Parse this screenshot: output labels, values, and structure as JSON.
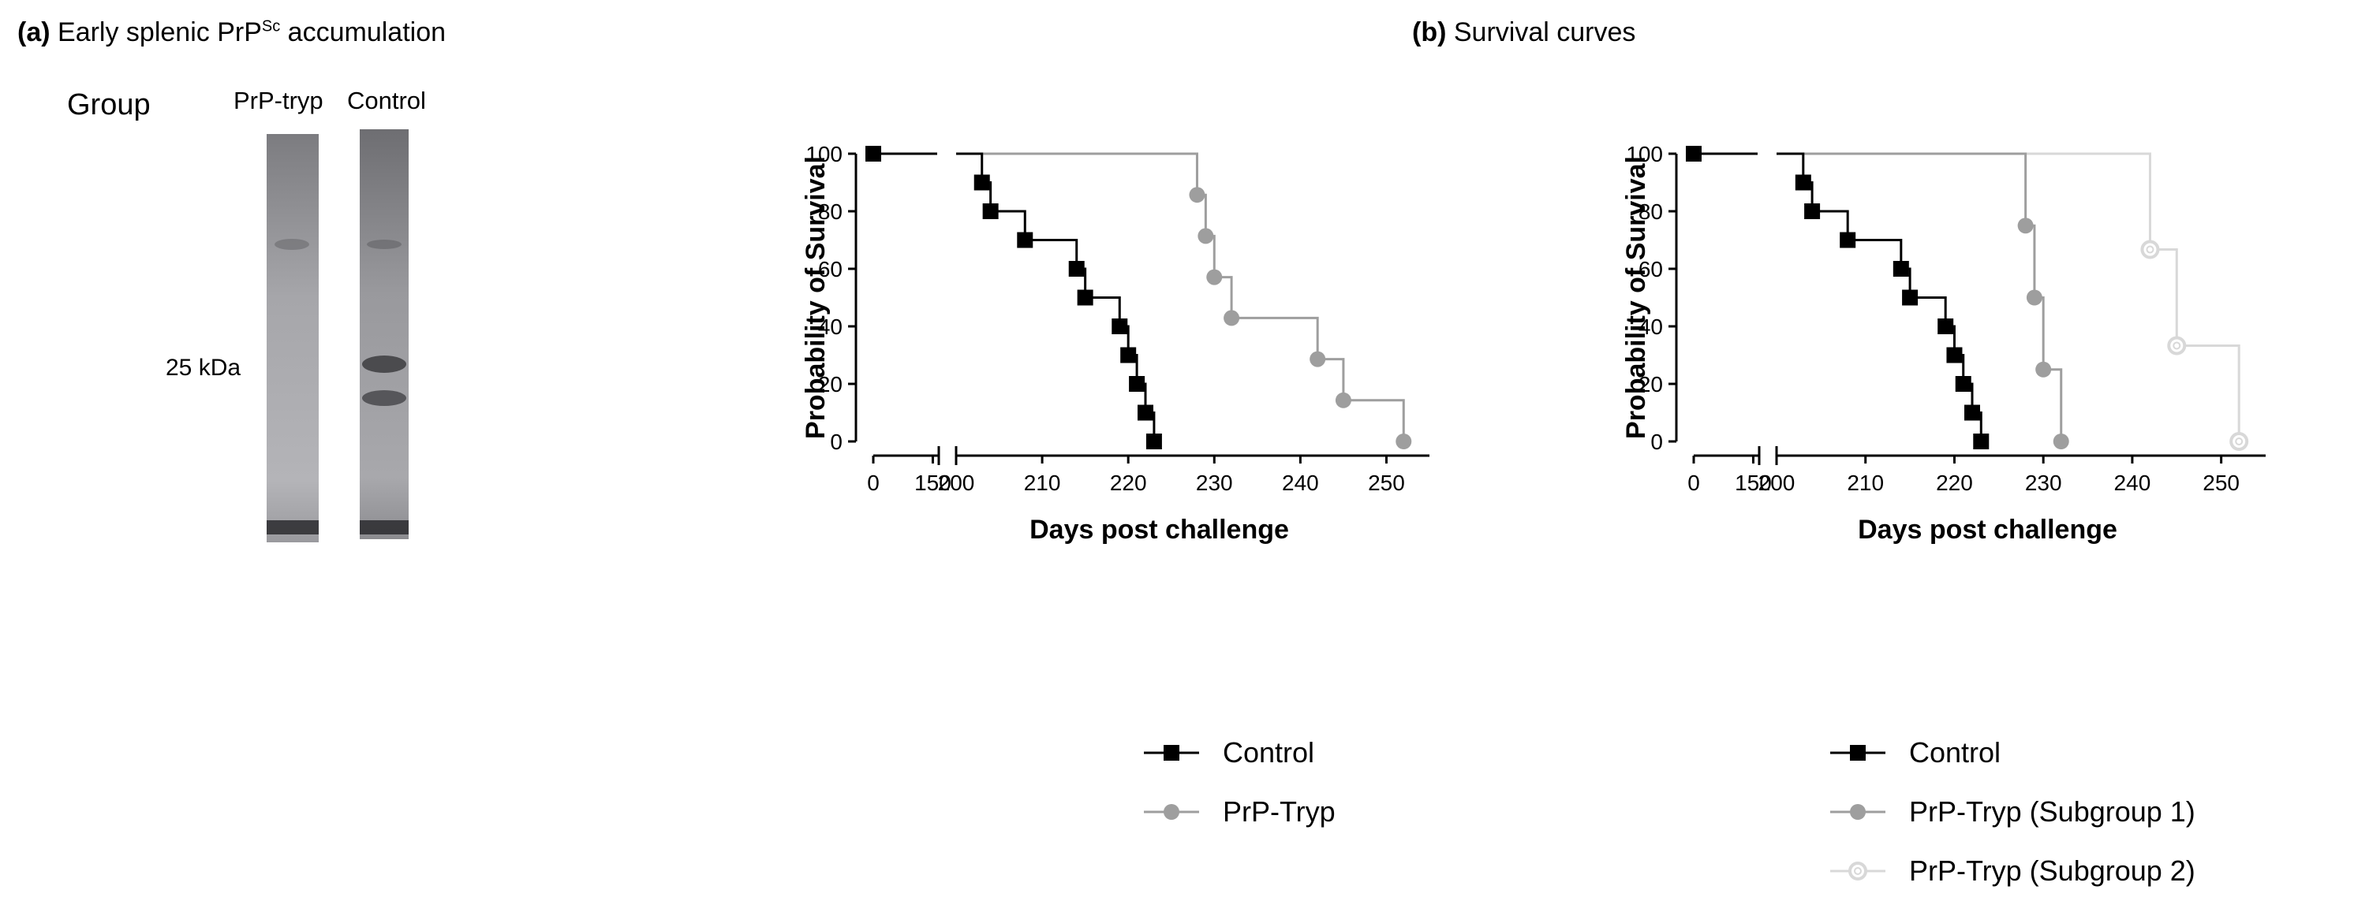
{
  "panel_a": {
    "letter": "(a)",
    "title_main": "Early splenic PrP",
    "title_sup": "Sc",
    "title_end": " accumulation",
    "group_label": "Group",
    "lane_labels": [
      "PrP-tryp",
      "Control"
    ],
    "marker_label": "25 kDa"
  },
  "panel_b": {
    "letter": "(b)",
    "title": "Survival curves"
  },
  "colors": {
    "control": "#000000",
    "prp_tryp": "#9e9e9e",
    "subgroup1": "#9e9e9e",
    "subgroup2": "#d8d8d8"
  },
  "chart_data": [
    {
      "type": "line",
      "subtype": "kaplan-meier",
      "title": "",
      "xlabel": "Days post challenge",
      "ylabel": "Probability of Survival",
      "x_axis_break": {
        "segment1": [
          0,
          165
        ],
        "segment2": [
          200,
          255
        ]
      },
      "x_ticks": [
        0,
        150,
        200,
        210,
        220,
        230,
        240,
        250
      ],
      "ylim": [
        0,
        100
      ],
      "y_ticks": [
        0,
        20,
        40,
        60,
        80,
        100
      ],
      "series": [
        {
          "name": "Control",
          "color_key": "control",
          "marker": "square",
          "steps": [
            [
              0,
              100
            ],
            [
              203,
              90
            ],
            [
              204,
              80
            ],
            [
              208,
              70
            ],
            [
              214,
              60
            ],
            [
              215,
              50
            ],
            [
              219,
              40
            ],
            [
              220,
              30
            ],
            [
              221,
              20
            ],
            [
              222,
              10
            ],
            [
              223,
              0
            ]
          ]
        },
        {
          "name": "PrP-Tryp",
          "color_key": "prp_tryp",
          "marker": "circle",
          "steps": [
            [
              0,
              100
            ],
            [
              228,
              85.7
            ],
            [
              229,
              71.4
            ],
            [
              230,
              57.1
            ],
            [
              232,
              42.9
            ],
            [
              242,
              28.6
            ],
            [
              245,
              14.3
            ],
            [
              252,
              0
            ]
          ]
        }
      ]
    },
    {
      "type": "line",
      "subtype": "kaplan-meier",
      "title": "",
      "xlabel": "Days post challenge",
      "ylabel": "Probability of Survival",
      "x_axis_break": {
        "segment1": [
          0,
          165
        ],
        "segment2": [
          200,
          255
        ]
      },
      "x_ticks": [
        0,
        150,
        200,
        210,
        220,
        230,
        240,
        250
      ],
      "ylim": [
        0,
        100
      ],
      "y_ticks": [
        0,
        20,
        40,
        60,
        80,
        100
      ],
      "series": [
        {
          "name": "Control",
          "color_key": "control",
          "marker": "square",
          "steps": [
            [
              0,
              100
            ],
            [
              203,
              90
            ],
            [
              204,
              80
            ],
            [
              208,
              70
            ],
            [
              214,
              60
            ],
            [
              215,
              50
            ],
            [
              219,
              40
            ],
            [
              220,
              30
            ],
            [
              221,
              20
            ],
            [
              222,
              10
            ],
            [
              223,
              0
            ]
          ]
        },
        {
          "name": "PrP-Tryp (Subgroup 1)",
          "color_key": "subgroup1",
          "marker": "circle",
          "steps": [
            [
              0,
              100
            ],
            [
              228,
              75
            ],
            [
              229,
              50
            ],
            [
              230,
              25
            ],
            [
              232,
              0
            ]
          ]
        },
        {
          "name": "PrP-Tryp (Subgroup 2)",
          "color_key": "subgroup2",
          "marker": "open-circle",
          "steps": [
            [
              0,
              100
            ],
            [
              242,
              66.7
            ],
            [
              245,
              33.3
            ],
            [
              252,
              0
            ]
          ]
        }
      ]
    }
  ]
}
